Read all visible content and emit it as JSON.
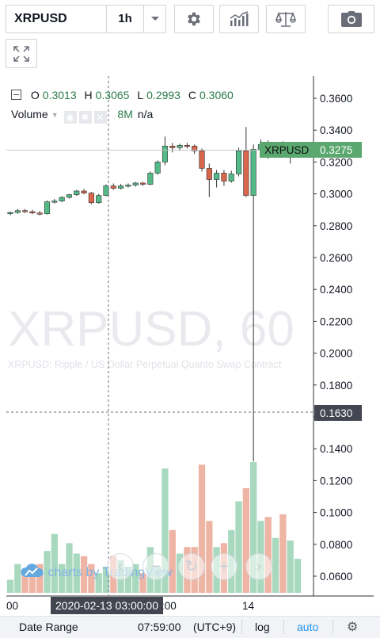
{
  "toolbar": {
    "symbol": "XRPUSD",
    "interval": "1h",
    "settings_icon": "gear-icon",
    "indicators_icon": "indicators-chart-icon",
    "compare_icon": "scales-icon",
    "snapshot_icon": "camera-icon",
    "fullscreen_icon": "fullscreen-icon"
  },
  "legend": {
    "o_label": "O",
    "o_value": "0.3013",
    "h_label": "H",
    "h_value": "0.3065",
    "l_label": "L",
    "l_value": "0.2993",
    "c_label": "C",
    "c_value": "0.3060"
  },
  "volume_legend": {
    "name": "Volume",
    "value": "8M",
    "ma": "n/a"
  },
  "watermark": {
    "symbol_interval": "XRPUSD, 60",
    "description": "XRPUSD: Ripple / US Dollar Perpetual Quanto Swap Contract"
  },
  "branding": "charts by TradingView",
  "crosshair": {
    "date_label": "2020-02-13 03:00:00",
    "price_label": "0.1630"
  },
  "last_price": {
    "symbol": "XRPUSD",
    "value": "0.3275"
  },
  "bottom_bar": {
    "date_range": "Date Range",
    "time": "07:59:00",
    "timezone": "(UTC+9)",
    "log": "log",
    "auto": "auto"
  },
  "colors": {
    "up": "#53b987",
    "down": "#d9654b",
    "last_price_bg": "#5aa86f",
    "vol_up": "#a8d9bf",
    "vol_down": "#eeb4a4"
  },
  "chart_data": {
    "type": "candlestick",
    "y_ticks": [
      "0.3600",
      "0.3400",
      "0.3200",
      "0.3000",
      "0.2800",
      "0.2600",
      "0.2400",
      "0.2200",
      "0.2000",
      "0.1800",
      "0.1600",
      "0.1400",
      "0.1200",
      "0.1000",
      "0.0800",
      "0.0600"
    ],
    "ylim": [
      0.05,
      0.375
    ],
    "x_ticks": [
      "00",
      ":00",
      "14"
    ],
    "candles": [
      {
        "o": 0.2875,
        "h": 0.289,
        "l": 0.2865,
        "c": 0.2883
      },
      {
        "o": 0.2883,
        "h": 0.2905,
        "l": 0.2875,
        "c": 0.2895
      },
      {
        "o": 0.2895,
        "h": 0.2905,
        "l": 0.288,
        "c": 0.2888
      },
      {
        "o": 0.2888,
        "h": 0.29,
        "l": 0.2872,
        "c": 0.288
      },
      {
        "o": 0.288,
        "h": 0.2892,
        "l": 0.2865,
        "c": 0.2875
      },
      {
        "o": 0.2875,
        "h": 0.2958,
        "l": 0.287,
        "c": 0.295
      },
      {
        "o": 0.295,
        "h": 0.2968,
        "l": 0.294,
        "c": 0.2955
      },
      {
        "o": 0.2955,
        "h": 0.2985,
        "l": 0.2948,
        "c": 0.2978
      },
      {
        "o": 0.2978,
        "h": 0.3,
        "l": 0.297,
        "c": 0.2995
      },
      {
        "o": 0.2995,
        "h": 0.3025,
        "l": 0.2988,
        "c": 0.3018
      },
      {
        "o": 0.3018,
        "h": 0.303,
        "l": 0.2998,
        "c": 0.3005
      },
      {
        "o": 0.3005,
        "h": 0.3012,
        "l": 0.2935,
        "c": 0.2945
      },
      {
        "o": 0.2945,
        "h": 0.3,
        "l": 0.2938,
        "c": 0.299
      },
      {
        "o": 0.299,
        "h": 0.306,
        "l": 0.2985,
        "c": 0.305
      },
      {
        "o": 0.305,
        "h": 0.3065,
        "l": 0.3025,
        "c": 0.3035
      },
      {
        "o": 0.3035,
        "h": 0.3062,
        "l": 0.3028,
        "c": 0.305
      },
      {
        "o": 0.305,
        "h": 0.3065,
        "l": 0.304,
        "c": 0.3055
      },
      {
        "o": 0.3055,
        "h": 0.3075,
        "l": 0.3045,
        "c": 0.3068
      },
      {
        "o": 0.3068,
        "h": 0.3075,
        "l": 0.305,
        "c": 0.306
      },
      {
        "o": 0.306,
        "h": 0.314,
        "l": 0.3055,
        "c": 0.313
      },
      {
        "o": 0.313,
        "h": 0.321,
        "l": 0.312,
        "c": 0.32
      },
      {
        "o": 0.32,
        "h": 0.336,
        "l": 0.318,
        "c": 0.33
      },
      {
        "o": 0.33,
        "h": 0.332,
        "l": 0.326,
        "c": 0.329
      },
      {
        "o": 0.329,
        "h": 0.3315,
        "l": 0.327,
        "c": 0.3305
      },
      {
        "o": 0.3305,
        "h": 0.332,
        "l": 0.3285,
        "c": 0.33
      },
      {
        "o": 0.33,
        "h": 0.331,
        "l": 0.325,
        "c": 0.327
      },
      {
        "o": 0.327,
        "h": 0.3285,
        "l": 0.314,
        "c": 0.316
      },
      {
        "o": 0.316,
        "h": 0.319,
        "l": 0.298,
        "c": 0.309
      },
      {
        "o": 0.309,
        "h": 0.315,
        "l": 0.304,
        "c": 0.313
      },
      {
        "o": 0.313,
        "h": 0.315,
        "l": 0.305,
        "c": 0.308
      },
      {
        "o": 0.308,
        "h": 0.3145,
        "l": 0.307,
        "c": 0.3125
      },
      {
        "o": 0.3125,
        "h": 0.329,
        "l": 0.311,
        "c": 0.327
      },
      {
        "o": 0.327,
        "h": 0.342,
        "l": 0.298,
        "c": 0.299
      },
      {
        "o": 0.299,
        "h": 0.331,
        "l": 0.132,
        "c": 0.328
      },
      {
        "o": 0.328,
        "h": 0.334,
        "l": 0.325,
        "c": 0.331
      },
      {
        "o": 0.331,
        "h": 0.3335,
        "l": 0.322,
        "c": 0.325
      },
      {
        "o": 0.325,
        "h": 0.329,
        "l": 0.323,
        "c": 0.3275
      },
      {
        "o": 0.3275,
        "h": 0.333,
        "l": 0.324,
        "c": 0.3265
      },
      {
        "o": 0.3265,
        "h": 0.33,
        "l": 0.319,
        "c": 0.3275
      },
      {
        "o": 0.3275,
        "h": 0.329,
        "l": 0.3255,
        "c": 0.3275
      }
    ],
    "volume_relative": [
      0.1,
      0.22,
      0.18,
      0.2,
      0.22,
      0.32,
      0.45,
      0.22,
      0.38,
      0.3,
      0.28,
      0.22,
      0.15,
      0.2,
      0.28,
      0.25,
      0.2,
      0.22,
      0.15,
      0.35,
      0.2,
      0.95,
      0.48,
      0.3,
      0.35,
      0.35,
      0.98,
      0.55,
      0.35,
      0.38,
      0.48,
      0.7,
      0.8,
      1.0,
      0.55,
      0.58,
      0.42,
      0.6,
      0.4,
      0.26
    ]
  }
}
